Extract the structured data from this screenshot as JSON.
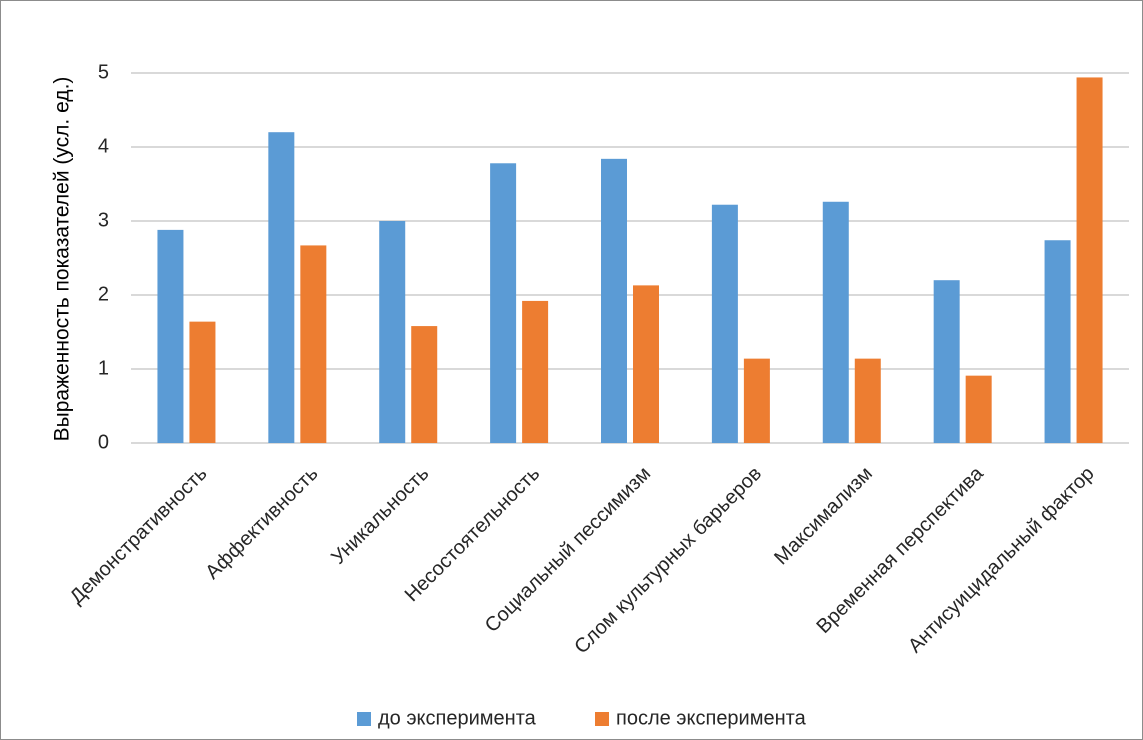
{
  "chart_data": {
    "type": "bar",
    "title": "",
    "xlabel": "",
    "ylabel": "Выраженность показателей (усл. ед.)",
    "ylim": [
      0,
      5.5
    ],
    "yticks": [
      0,
      1,
      2,
      3,
      4,
      5
    ],
    "grid": true,
    "legend_position": "bottom",
    "categories": [
      "Демонстративность",
      "Аффективность",
      "Уникальность",
      "Несостоятельность",
      "Социальный пессимизм",
      "Слом культурных барьеров",
      "Максимализм",
      "Временная перспектива",
      "Антисуицидальный фактор"
    ],
    "series": [
      {
        "name": "до эксперимента",
        "color": "#5b9bd5",
        "values": [
          2.88,
          4.2,
          3.0,
          3.78,
          3.84,
          3.22,
          3.26,
          2.2,
          2.74
        ]
      },
      {
        "name": "после эксперимента",
        "color": "#ed7d31",
        "values": [
          1.64,
          2.67,
          1.58,
          1.92,
          2.13,
          1.14,
          1.14,
          0.91,
          4.94
        ]
      }
    ]
  }
}
